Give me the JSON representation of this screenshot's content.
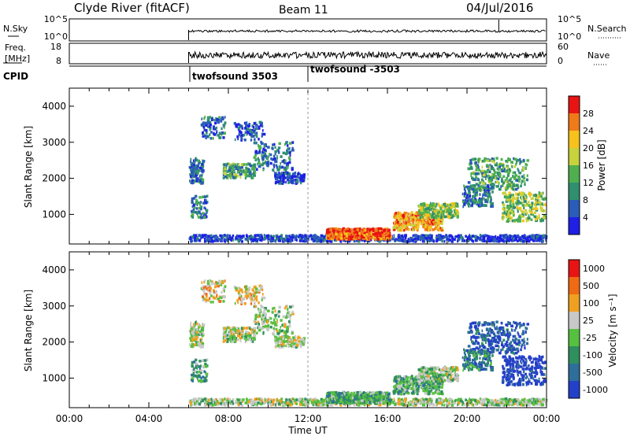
{
  "header": {
    "title": "Clyde River (fitACF)",
    "beam": "Beam 11",
    "date": "04/Jul/2016"
  },
  "top_panels": {
    "nsky_label": "N.Sky",
    "nsky_ticks": [
      "10^5",
      "10^0"
    ],
    "nsearch_label": "N.Search",
    "nsearch_ticks": [
      "10^5",
      "10^0"
    ],
    "freq_label": "Freq.",
    "freq_unit": "[MHz]",
    "freq_ticks": [
      "18",
      "8"
    ],
    "nave_label": "Nave",
    "nave_ticks": [
      "60",
      "0"
    ],
    "cpid_label": "CPID",
    "cpid_segments": [
      {
        "name": "twofsound 3503",
        "start": "06:00"
      },
      {
        "name": "twofsound -3503",
        "start": "12:00"
      }
    ]
  },
  "chart_data": [
    {
      "type": "heatmap",
      "name": "power",
      "ylabel": "Slant Range [km]",
      "y_ticks": [
        "1000",
        "2000",
        "3000",
        "4000"
      ],
      "ylim": [
        180,
        4500
      ],
      "colorbar_label": "Power [dB]",
      "colorbar_ticks": [
        "4",
        "8",
        "12",
        "16",
        "20",
        "24",
        "28"
      ],
      "colorbar_colors": [
        "#1f1fe6",
        "#2a5cb8",
        "#2f8f6f",
        "#4faf4f",
        "#c8d23c",
        "#f7c21c",
        "#ef7a1a",
        "#e81414"
      ],
      "data_start_time": "06:00"
    },
    {
      "type": "heatmap",
      "name": "velocity",
      "ylabel": "Slant Range [km]",
      "y_ticks": [
        "1000",
        "2000",
        "3000",
        "4000"
      ],
      "ylim": [
        180,
        4500
      ],
      "colorbar_label": "Velocity [m s⁻¹]",
      "colorbar_ticks": [
        "1000",
        "500",
        "100",
        "25",
        "-25",
        "-100",
        "-500",
        "-1000"
      ],
      "colorbar_colors": [
        "#2440c8",
        "#2e6e9a",
        "#2f8f5f",
        "#58c040",
        "#c8c8c8",
        "#f0a020",
        "#f06a14",
        "#e81414"
      ],
      "data_start_time": "06:00"
    }
  ],
  "x_axis": {
    "ticks": [
      "00:00",
      "04:00",
      "08:00",
      "12:00",
      "16:00",
      "20:00",
      "00:00"
    ],
    "label": "Time UT"
  }
}
